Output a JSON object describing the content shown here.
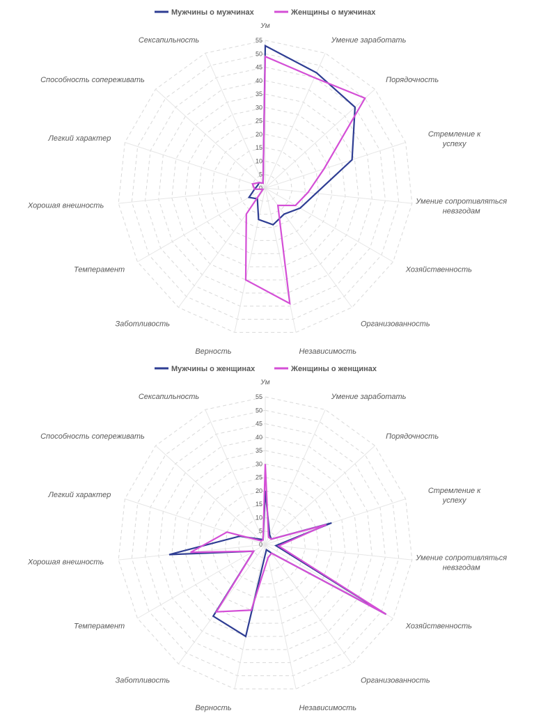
{
  "chart_data": [
    {
      "type": "radar",
      "title": "",
      "axis_title": "Ум",
      "categories": [
        "Ум",
        "Умение заработать",
        "Порядочность",
        "Стремление к успеху",
        "Умение сопротивляться невзгодам",
        "Хозяйственность",
        "Организованность",
        "Независимость",
        "Верность",
        "Заботливость",
        "Темперамент",
        "Хорошая внешность",
        "Легкий характер",
        "Способность сопереживать",
        "Сексапильность"
      ],
      "ticks": [
        0,
        5,
        10,
        15,
        20,
        25,
        30,
        35,
        40,
        45,
        50,
        55
      ],
      "range": [
        0,
        55
      ],
      "gridlines": true,
      "legend_position": "top",
      "series": [
        {
          "name": "Мужчины о мужчинах",
          "color": "#2E3D93",
          "values": [
            53,
            47,
            45,
            34,
            19,
            15,
            12,
            14,
            12,
            5,
            7,
            4,
            3,
            3,
            2
          ]
        },
        {
          "name": "Женщины о мужчинах",
          "color": "#D44FD6",
          "values": [
            49,
            45,
            50,
            23,
            16,
            13,
            8,
            44,
            35,
            12,
            1,
            4,
            5,
            3,
            2
          ]
        }
      ]
    },
    {
      "type": "radar",
      "title": "",
      "axis_title": "Ум",
      "categories": [
        "Ум",
        "Умение заработать",
        "Порядочность",
        "Стремление к успеху",
        "Умение сопротивляться невзгодам",
        "Хозяйственность",
        "Организованность",
        "Независимость",
        "Верность",
        "Заботливость",
        "Темперамент",
        "Хорошая внешность",
        "Легкий характер",
        "Способность сопереживать",
        "Сексапильность"
      ],
      "ticks": [
        0,
        5,
        10,
        15,
        20,
        25,
        30,
        35,
        40,
        45,
        50,
        55
      ],
      "range": [
        0,
        55
      ],
      "gridlines": true,
      "legend_position": "top",
      "series": [
        {
          "name": "Мужчины о женщинах",
          "color": "#2E3D93",
          "values": [
            20,
            4,
            3,
            26,
            4,
            52,
            4,
            2,
            35,
            33,
            5,
            36,
            10,
            3,
            2
          ]
        },
        {
          "name": "Женщины о женщинах",
          "color": "#D44FD6",
          "values": [
            30,
            3,
            3,
            24,
            5,
            52,
            4,
            5,
            25,
            31,
            5,
            28,
            15,
            2,
            2
          ]
        }
      ]
    }
  ]
}
